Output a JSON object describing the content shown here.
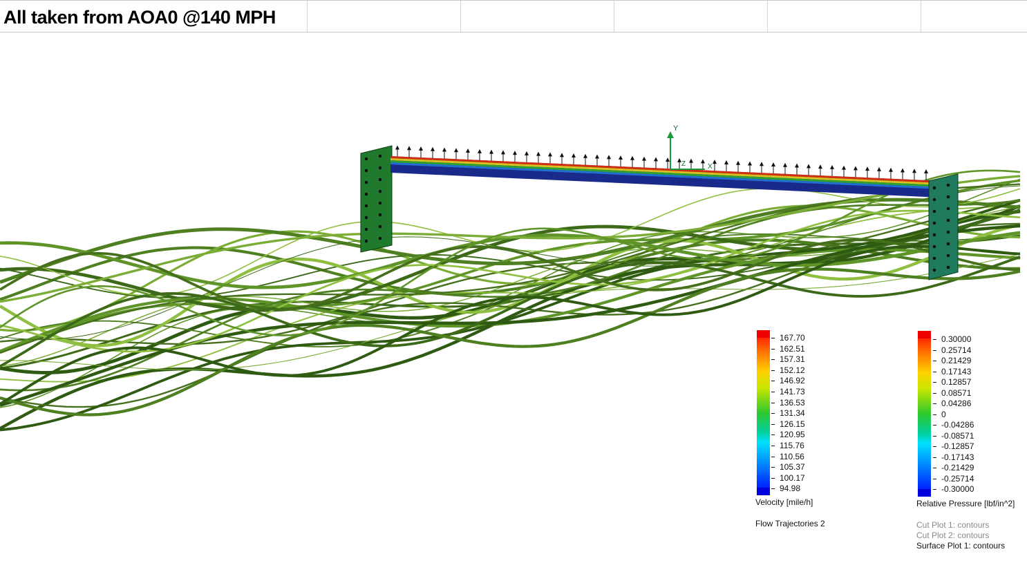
{
  "title": "All taken from AOA0 @140 MPH",
  "axes": {
    "y": "Y",
    "z": "Z",
    "x": "X"
  },
  "velocity_legend": {
    "ticks": [
      "167.70",
      "162.51",
      "157.31",
      "152.12",
      "146.92",
      "141.73",
      "136.53",
      "131.34",
      "126.15",
      "120.95",
      "115.76",
      "110.56",
      "105.37",
      "100.17",
      "94.98"
    ],
    "label": "Velocity [mile/h]",
    "plot_name": "Flow Trajectories 2"
  },
  "pressure_legend": {
    "ticks": [
      "0.30000",
      "0.25714",
      "0.21429",
      "0.17143",
      "0.12857",
      "0.08571",
      "0.04286",
      "0",
      "-0.04286",
      "-0.08571",
      "-0.12857",
      "-0.17143",
      "-0.21429",
      "-0.25714",
      "-0.30000"
    ],
    "label": "Relative Pressure [lbf/in^2]",
    "plots": [
      {
        "text": "Cut Plot 1: contours",
        "active": false
      },
      {
        "text": "Cut Plot 2: contours",
        "active": false
      },
      {
        "text": "Surface Plot 1: contours",
        "active": true
      }
    ]
  },
  "colors": {
    "streamline": "#4a7a1e",
    "endplate": "#1f7a2e",
    "wing_bottom": "#1a2a8a"
  }
}
